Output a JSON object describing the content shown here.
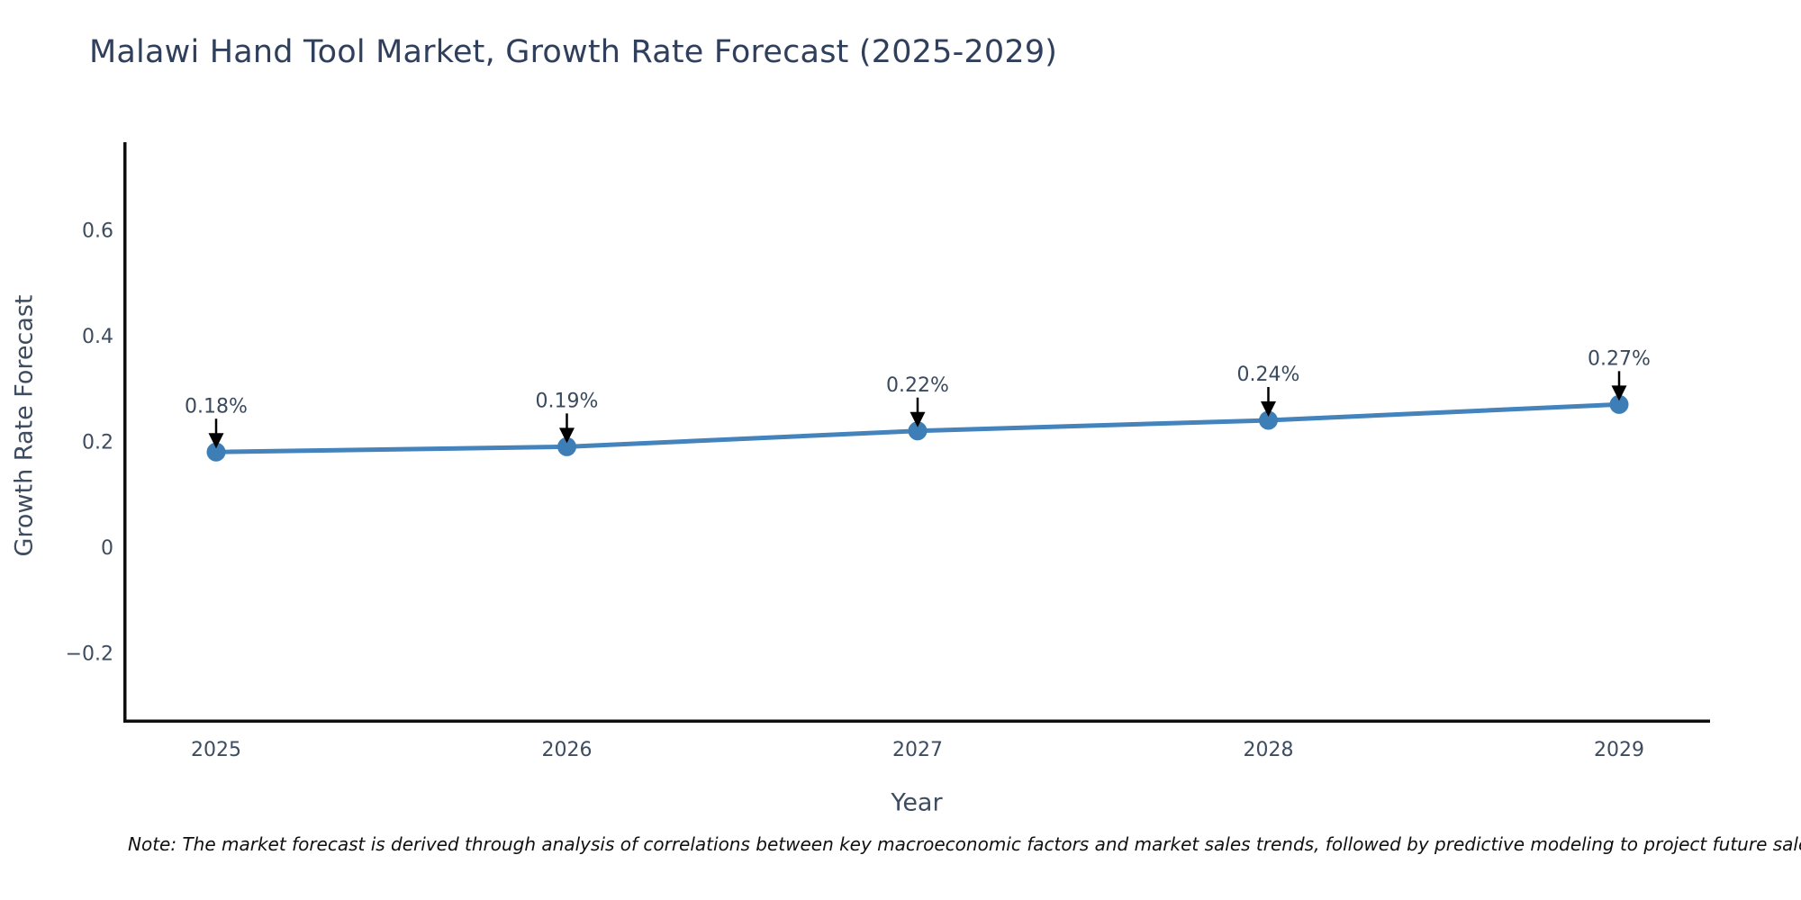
{
  "note": "Note: The market forecast is derived through analysis of correlations between key macroeconomic factors and market sales trends, followed by predictive modeling to project future sales",
  "chart_data": {
    "type": "line",
    "title": "Malawi Hand Tool Market, Growth Rate Forecast (2025-2029)",
    "xlabel": "Year",
    "ylabel": "Growth Rate Forecast",
    "x": [
      2025,
      2026,
      2027,
      2028,
      2029
    ],
    "xtick_labels": [
      "2025",
      "2026",
      "2027",
      "2028",
      "2029"
    ],
    "series": [
      {
        "name": "Growth Rate Forecast",
        "values": [
          0.18,
          0.19,
          0.22,
          0.24,
          0.27
        ]
      }
    ],
    "point_labels": [
      "0.18%",
      "0.19%",
      "0.22%",
      "0.24%",
      "0.27%"
    ],
    "yticks": [
      -0.2,
      0,
      0.2,
      0.4,
      0.6
    ],
    "ytick_labels": [
      "−0.2",
      "0",
      "0.2",
      "0.4",
      "0.6"
    ],
    "ylim": [
      -0.33,
      0.77
    ],
    "grid": false,
    "legend_position": "none",
    "annotations_have_arrows": true,
    "colors": {
      "line": "#4483bb",
      "marker": "#3e7eb7",
      "arrow": "#000000",
      "axis_spine": "#0f0f0f",
      "tick_text": "#3e4c60",
      "annotation_text": "#3a4a5e",
      "title_text": "#2f3f5c",
      "background": "#ffffff"
    }
  }
}
